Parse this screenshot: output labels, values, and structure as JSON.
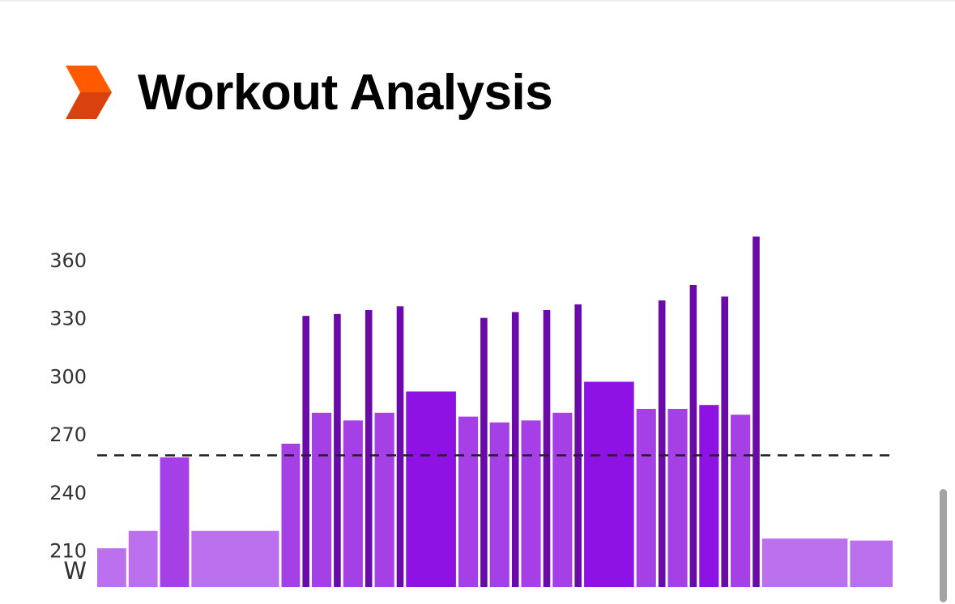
{
  "header": {
    "title": "Workout Analysis",
    "logo_icon": "chevron-right-logo-icon",
    "logo_colors": [
      "#ff5a00",
      "#d9420f"
    ]
  },
  "chart_data": {
    "type": "bar",
    "title": "",
    "xlabel": "",
    "ylabel": "W",
    "ylim": [
      191,
      375
    ],
    "yticks": [
      210,
      240,
      270,
      300,
      330,
      360
    ],
    "reference_line": {
      "value": 259,
      "style": "dashed",
      "color": "#222222"
    },
    "grid": false,
    "legend": "none",
    "colors": {
      "light": "#bb70ee",
      "medium": "#a53fe6",
      "strong": "#8e12e3",
      "dark": "#6a0aa8"
    },
    "bars": [
      {
        "start": 0,
        "duration": 1.5,
        "value": 211,
        "color": "light"
      },
      {
        "start": 1.5,
        "duration": 1.5,
        "value": 220,
        "color": "light"
      },
      {
        "start": 3,
        "duration": 1.5,
        "value": 258,
        "color": "medium"
      },
      {
        "start": 4.5,
        "duration": 4.3,
        "value": 220,
        "color": "light"
      },
      {
        "start": 8.8,
        "duration": 1.0,
        "value": 265,
        "color": "medium"
      },
      {
        "start": 9.8,
        "duration": 0.45,
        "value": 331,
        "color": "dark"
      },
      {
        "start": 10.25,
        "duration": 1.05,
        "value": 281,
        "color": "medium"
      },
      {
        "start": 11.3,
        "duration": 0.45,
        "value": 332,
        "color": "dark"
      },
      {
        "start": 11.75,
        "duration": 1.05,
        "value": 277,
        "color": "medium"
      },
      {
        "start": 12.8,
        "duration": 0.45,
        "value": 334,
        "color": "dark"
      },
      {
        "start": 13.25,
        "duration": 1.05,
        "value": 281,
        "color": "medium"
      },
      {
        "start": 14.3,
        "duration": 0.45,
        "value": 336,
        "color": "dark"
      },
      {
        "start": 14.75,
        "duration": 2.5,
        "value": 292,
        "color": "strong"
      },
      {
        "start": 17.25,
        "duration": 1.05,
        "value": 279,
        "color": "medium"
      },
      {
        "start": 18.3,
        "duration": 0.45,
        "value": 330,
        "color": "dark"
      },
      {
        "start": 18.75,
        "duration": 1.05,
        "value": 276,
        "color": "medium"
      },
      {
        "start": 19.8,
        "duration": 0.45,
        "value": 333,
        "color": "dark"
      },
      {
        "start": 20.25,
        "duration": 1.05,
        "value": 277,
        "color": "medium"
      },
      {
        "start": 21.3,
        "duration": 0.45,
        "value": 334,
        "color": "dark"
      },
      {
        "start": 21.75,
        "duration": 1.05,
        "value": 281,
        "color": "medium"
      },
      {
        "start": 22.8,
        "duration": 0.45,
        "value": 337,
        "color": "dark"
      },
      {
        "start": 23.25,
        "duration": 2.5,
        "value": 297,
        "color": "strong"
      },
      {
        "start": 25.75,
        "duration": 1.05,
        "value": 283,
        "color": "medium"
      },
      {
        "start": 26.8,
        "duration": 0.45,
        "value": 339,
        "color": "dark"
      },
      {
        "start": 27.25,
        "duration": 1.05,
        "value": 283,
        "color": "medium"
      },
      {
        "start": 28.3,
        "duration": 0.45,
        "value": 347,
        "color": "dark"
      },
      {
        "start": 28.75,
        "duration": 1.05,
        "value": 285,
        "color": "strong"
      },
      {
        "start": 29.8,
        "duration": 0.45,
        "value": 341,
        "color": "dark"
      },
      {
        "start": 30.25,
        "duration": 1.05,
        "value": 280,
        "color": "medium"
      },
      {
        "start": 31.3,
        "duration": 0.45,
        "value": 372,
        "color": "dark"
      },
      {
        "start": 31.75,
        "duration": 4.2,
        "value": 216,
        "color": "light"
      },
      {
        "start": 35.95,
        "duration": 2.15,
        "value": 215,
        "color": "light"
      }
    ]
  }
}
